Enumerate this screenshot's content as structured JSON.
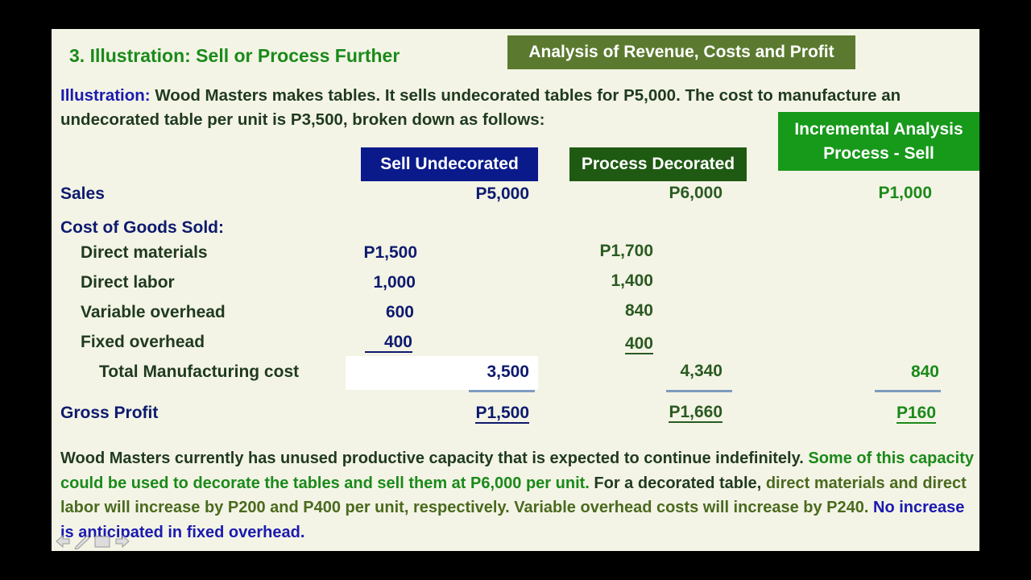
{
  "title": "3.  Illustration:  Sell or Process Further",
  "banner": "Analysis of Revenue, Costs and Profit",
  "intro": {
    "label": "Illustration:",
    "text": "Wood Masters makes tables.  It sells undecorated tables for P5,000.  The cost to manufacture an undecorated table per unit is P3,500, broken down as follows:"
  },
  "columns": [
    "Sell  Undecorated",
    "Process Decorated",
    "Incremental Analysis",
    "Process - Sell"
  ],
  "rows": [
    {
      "label": "Sales",
      "sell": "P5,000",
      "process": "P6,000",
      "incremental": "P1,000"
    },
    {
      "label": "Cost of Goods Sold:"
    },
    {
      "label": "Direct materials",
      "sell": "P1,500",
      "process": "P1,700"
    },
    {
      "label": "Direct labor",
      "sell": "1,000",
      "process": "1,400"
    },
    {
      "label": "Variable overhead",
      "sell": "600",
      "process": "840"
    },
    {
      "label": "Fixed overhead",
      "sell": "400",
      "process": "400"
    },
    {
      "label": "Total Manufacturing cost",
      "sell": "3,500",
      "process": "4,340",
      "incremental": "840"
    },
    {
      "label": "Gross Profit",
      "sell": "P1,500",
      "process": "P1,660",
      "incremental": "P160"
    }
  ],
  "note": [
    "Wood Masters currently has unused productive capacity that is expected to continue indefinitely.",
    "Some of this capacity could be used to decorate the tables and sell them at P6,000 per unit.",
    "For a decorated table,",
    "direct materials and direct labor will increase by P200 and P400 per unit, respectively.  Variable overhead costs will increase by P240.",
    "No increase is anticipated in fixed overhead."
  ]
}
